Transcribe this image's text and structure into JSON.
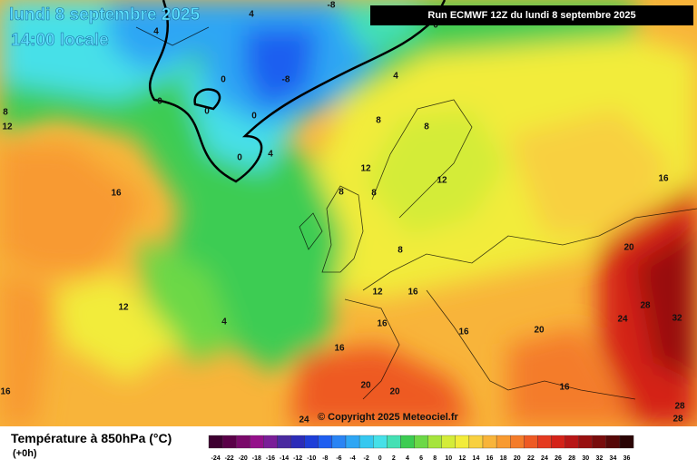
{
  "header": {
    "date": "lundi 8 septembre 2025",
    "time": "14:00 locale",
    "run": "Run ECMWF 12Z du lundi 8 septembre 2025"
  },
  "map": {
    "contour_labels": [
      -8,
      4,
      4,
      0,
      0,
      -8,
      0,
      0,
      0,
      4,
      0,
      4,
      8,
      8,
      12,
      12,
      8,
      8,
      8,
      16,
      12,
      8,
      12,
      4,
      12,
      16,
      16,
      16,
      16,
      20,
      20,
      20,
      16,
      20,
      24,
      28,
      32,
      28,
      28,
      16,
      16,
      24
    ],
    "copyright": "© Copyright 2025 Meteociel.fr"
  },
  "footer": {
    "title": "Température à 850hPa (°C)",
    "step": "(+0h)",
    "scale": {
      "labels": [
        -24,
        -22,
        -20,
        -18,
        -16,
        -14,
        -12,
        -10,
        -8,
        -6,
        -4,
        -2,
        0,
        2,
        4,
        6,
        8,
        10,
        12,
        14,
        16,
        18,
        20,
        22,
        24,
        26,
        28,
        30,
        32,
        34,
        36
      ],
      "colors": [
        "#3d0030",
        "#5a0048",
        "#7a0a6a",
        "#94108a",
        "#7a1e98",
        "#4a2aa0",
        "#2c2cb8",
        "#1e3ed8",
        "#1f5ef0",
        "#2a84f4",
        "#2ea6f4",
        "#36c8f0",
        "#46e0e8",
        "#44e0b4",
        "#3ccc52",
        "#6cd846",
        "#a6e43c",
        "#d4ec38",
        "#f2ec3a",
        "#f8d040",
        "#f8b43a",
        "#f89a30",
        "#f47c2a",
        "#ee5a24",
        "#e43a20",
        "#d42218",
        "#b81616",
        "#981010",
        "#780c0c",
        "#560808",
        "#2a0404"
      ]
    }
  }
}
